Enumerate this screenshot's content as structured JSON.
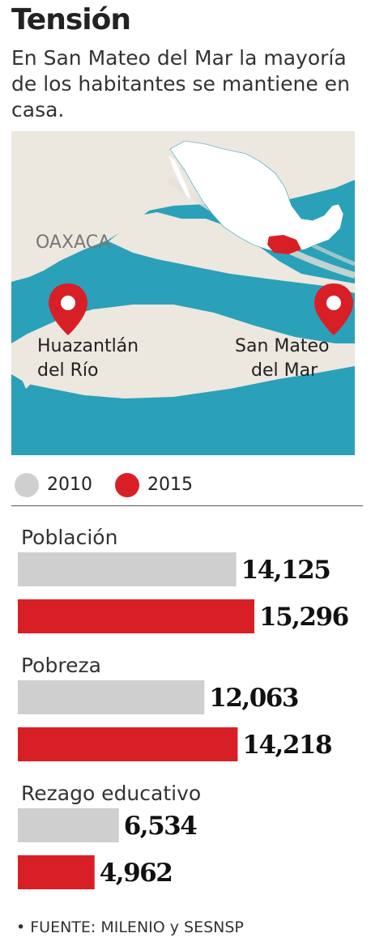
{
  "header": {
    "title": "Tensión",
    "subtitle": "En San Mateo del Mar la mayoría de los habitantes se mantiene en casa."
  },
  "map": {
    "state_label": "OAXACA",
    "places": [
      {
        "line1": "Huazantlán",
        "line2": "del Río"
      },
      {
        "line1": "San Mateo",
        "line2": "del Mar"
      }
    ],
    "colors": {
      "water": "#2aa1b8",
      "land": "#ece7df",
      "pin": "#d91f26"
    }
  },
  "legend": {
    "items": [
      {
        "label": "2010",
        "color": "#cfcfcf"
      },
      {
        "label": "2015",
        "color": "#d91f26"
      }
    ]
  },
  "chart_data": {
    "type": "bar",
    "orientation": "horizontal",
    "categories": [
      "Población",
      "Pobreza",
      "Rezago educativo"
    ],
    "series": [
      {
        "name": "2010",
        "color": "#cfcfcf",
        "values": [
          14125,
          12063,
          6534
        ],
        "labels": [
          "14,125",
          "12,063",
          "6,534"
        ]
      },
      {
        "name": "2015",
        "color": "#d91f26",
        "values": [
          15296,
          14218,
          4962
        ],
        "labels": [
          "15,296",
          "14,218",
          "4,962"
        ]
      }
    ],
    "xlim": [
      0,
      15296
    ],
    "grid": false,
    "legend_position": "top-left"
  },
  "source": "• FUENTE: MILENIO y SESNSP"
}
